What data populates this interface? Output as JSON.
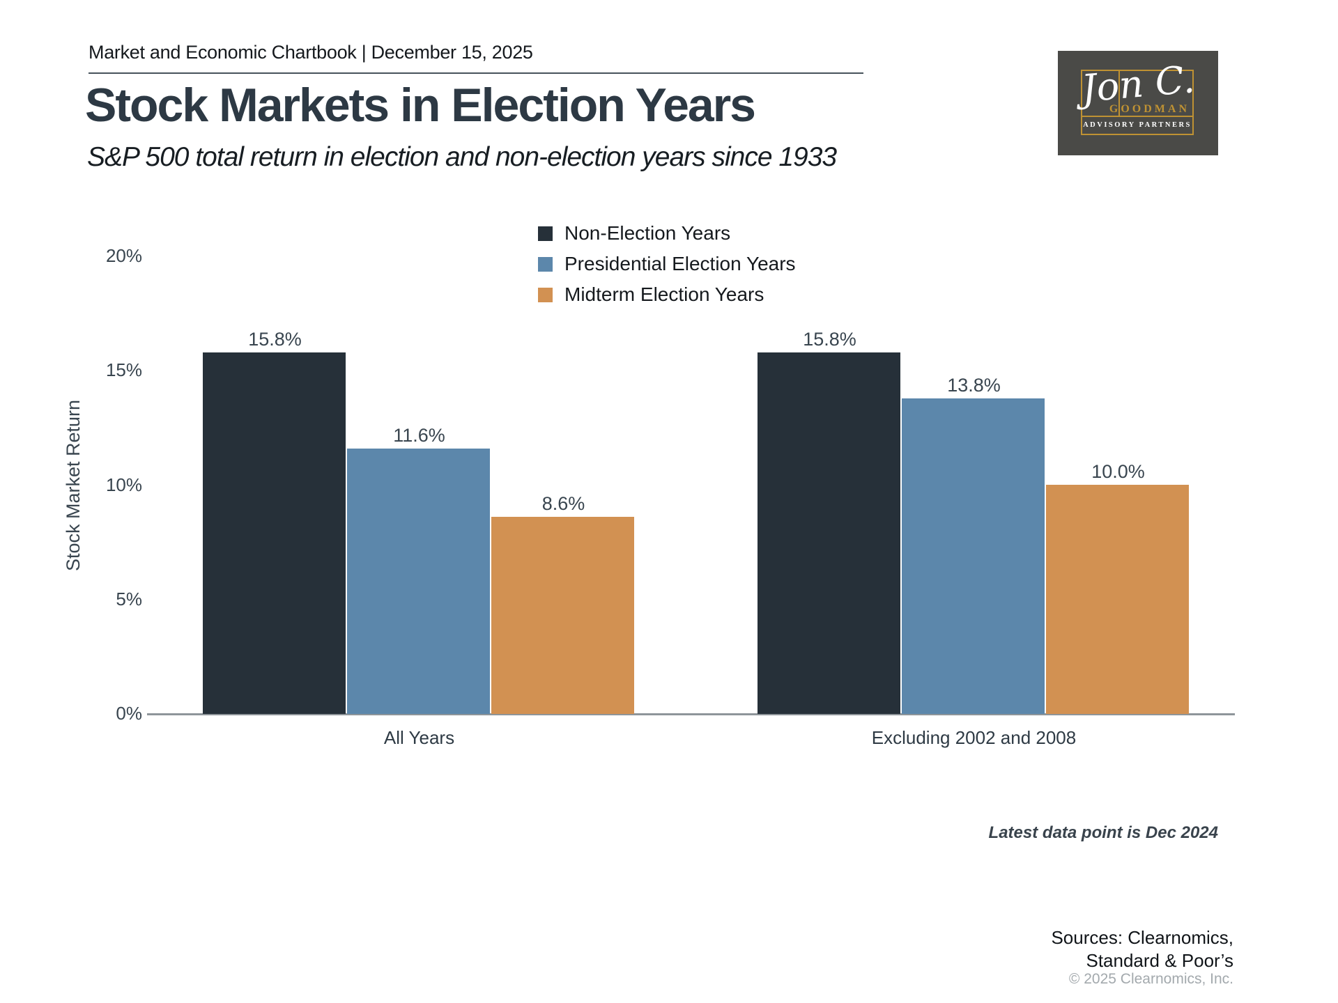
{
  "header": {
    "eyebrow": "Market and Economic Chartbook | December 15, 2025"
  },
  "title": "Stock Markets in Election Years",
  "subtitle": "S&P 500 total return in election and non-election years since 1933",
  "logo": {
    "signature": "Jon C.",
    "name": "GOODMAN",
    "tagline": "ADVISORY PARTNERS",
    "background": "#4a4a47",
    "gold": "#bf9233"
  },
  "chart_data": {
    "type": "bar",
    "title": "Stock Markets in Election Years",
    "subtitle": "S&P 500 total return in election and non-election years since 1933",
    "ylabel": "Stock Market Return",
    "categories": [
      "All Years",
      "Excluding 2002 and 2008"
    ],
    "series": [
      {
        "name": "Non-Election Years",
        "color": "#263039",
        "values": [
          15.8,
          15.8
        ]
      },
      {
        "name": "Presidential Election Years",
        "color": "#5c87ab",
        "values": [
          11.6,
          13.8
        ]
      },
      {
        "name": "Midterm Election Years",
        "color": "#d29152",
        "values": [
          8.6,
          10.0
        ]
      }
    ],
    "ylim": [
      0,
      20
    ],
    "yticks": [
      0,
      5,
      10,
      15,
      20
    ],
    "ytick_suffix": "%",
    "value_labels": [
      [
        "15.8%",
        "15.8%"
      ],
      [
        "11.6%",
        "13.8%"
      ],
      [
        "8.6%",
        "10.0%"
      ]
    ],
    "grid": false,
    "legend_position": "top-center"
  },
  "footnotes": {
    "latest": "Latest data point is Dec 2024"
  },
  "sources": {
    "line1": "Sources: Clearnomics,",
    "line2": "Standard & Poor’s",
    "copyright": "© 2025 Clearnomics, Inc."
  }
}
